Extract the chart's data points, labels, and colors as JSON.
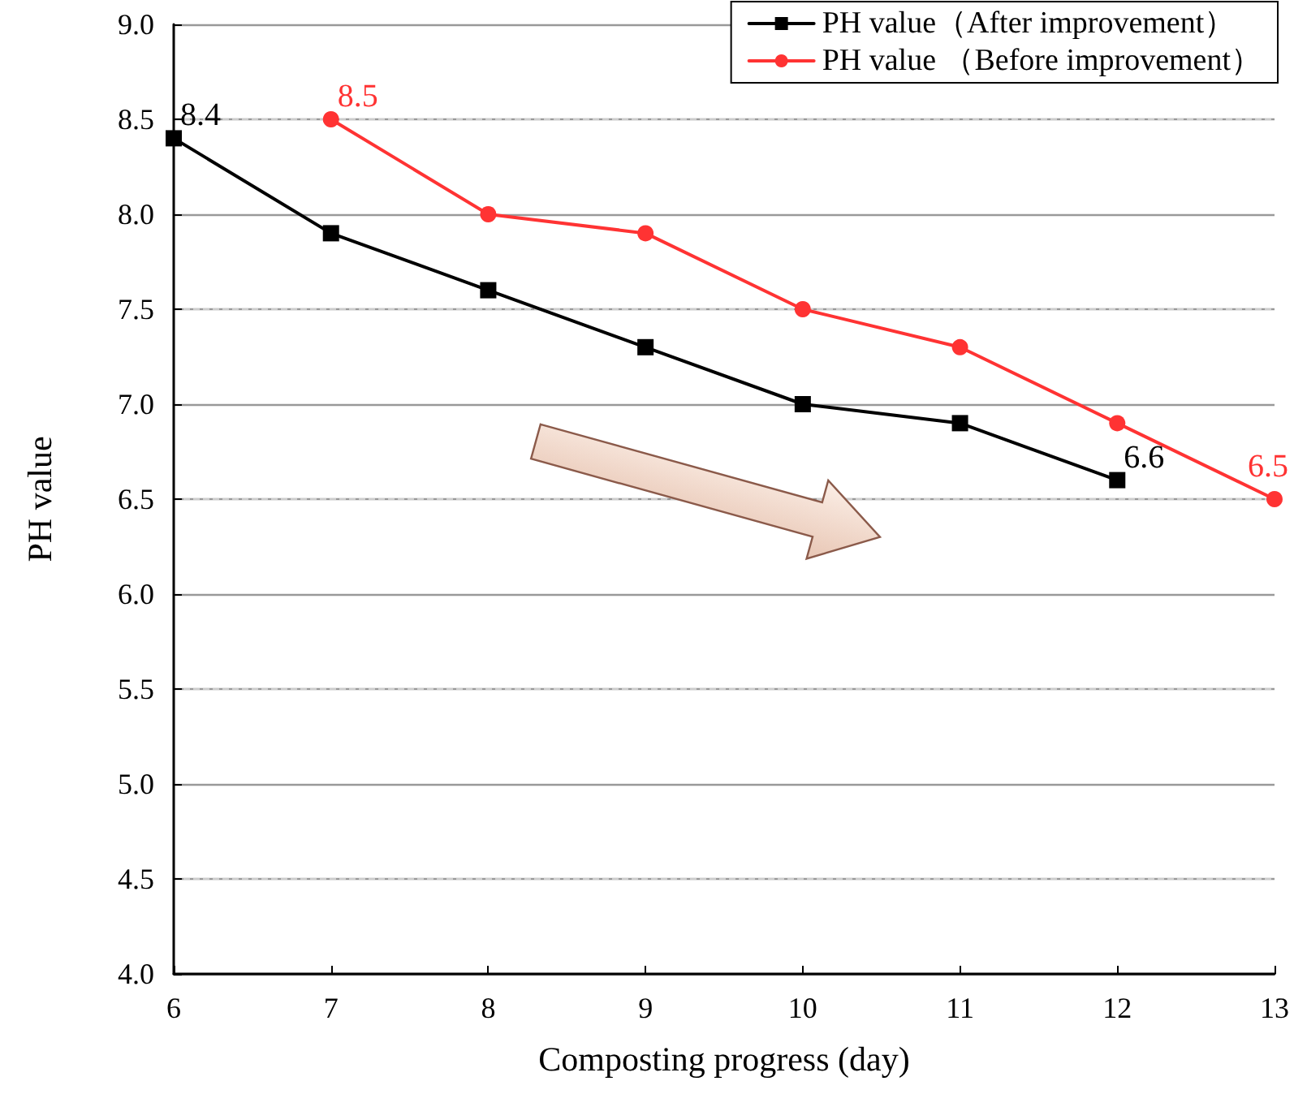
{
  "chart_data": {
    "type": "line",
    "xlabel": "Composting progress (day)",
    "ylabel": "PH value",
    "series": [
      {
        "name": "PH value（After improvement）",
        "color": "#000000",
        "marker": "square",
        "x": [
          6,
          7,
          8,
          9,
          10,
          11,
          12
        ],
        "values": [
          8.4,
          7.9,
          7.6,
          7.3,
          7.0,
          6.9,
          6.6
        ],
        "value_labels": [
          "8.4",
          null,
          null,
          null,
          null,
          null,
          "6.6"
        ]
      },
      {
        "name": "PH value （Before improvement）",
        "color": "#ff3333",
        "marker": "circle",
        "x": [
          7,
          8,
          9,
          10,
          11,
          12,
          13
        ],
        "values": [
          8.5,
          8.0,
          7.9,
          7.5,
          7.3,
          6.9,
          6.5
        ],
        "value_labels": [
          "8.5",
          null,
          null,
          null,
          null,
          null,
          "6.5"
        ]
      }
    ],
    "xlim": [
      6,
      13
    ],
    "xticks": [
      6,
      7,
      8,
      9,
      10,
      11,
      12,
      13
    ],
    "ylim": [
      4,
      9
    ],
    "yticks": [
      {
        "value": 4,
        "label": "4.0"
      },
      {
        "value": 4.5,
        "label": "4.5"
      },
      {
        "value": 5,
        "label": "5.0"
      },
      {
        "value": 5.5,
        "label": "5.5"
      },
      {
        "value": 6,
        "label": "6.0"
      },
      {
        "value": 6.5,
        "label": "6.5"
      },
      {
        "value": 7,
        "label": "7.0"
      },
      {
        "value": 7.5,
        "label": "7.5"
      },
      {
        "value": 8,
        "label": "8.0"
      },
      {
        "value": 8.5,
        "label": "8.5"
      },
      {
        "value": 9,
        "label": "9.0"
      }
    ],
    "grid": "y",
    "legend": "top right",
    "line_style": "solid"
  }
}
